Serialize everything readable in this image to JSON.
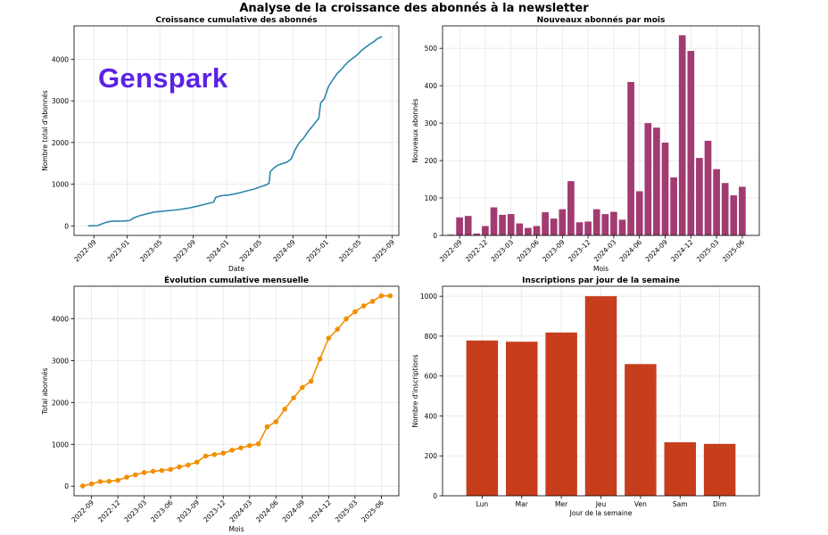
{
  "figure": {
    "title": "Analyse de la croissance des abonnés à la newsletter",
    "watermark": "Genspark"
  },
  "chart_data": [
    {
      "type": "line",
      "title": "Croissance cumulative des abonnés",
      "xlabel": "Date",
      "ylabel": "Nombre total d'abonnés",
      "color": "#2e86ab",
      "xlim": [
        "2022-06-20",
        "2025-09-25"
      ],
      "ylim": [
        -230,
        4800
      ],
      "yticks": [
        0,
        1000,
        2000,
        3000,
        4000
      ],
      "xticks": [
        "2022-09",
        "2023-01",
        "2023-05",
        "2023-09",
        "2024-01",
        "2024-05",
        "2024-09",
        "2025-01",
        "2025-05",
        "2025-09"
      ],
      "grid": true,
      "series": [
        {
          "x": [
            "2022-08-10",
            "2022-09-15",
            "2022-10-05",
            "2022-10-25",
            "2022-11-10",
            "2022-12-15",
            "2023-01-10",
            "2023-01-25",
            "2023-02-15",
            "2023-03-10",
            "2023-04-10",
            "2023-05-10",
            "2023-06-10",
            "2023-07-10",
            "2023-08-10",
            "2023-08-25",
            "2023-09-15",
            "2023-10-10",
            "2023-11-15",
            "2023-11-22",
            "2023-12-10",
            "2024-01-10",
            "2024-02-10",
            "2024-03-10",
            "2024-04-10",
            "2024-05-10",
            "2024-05-25",
            "2024-06-05",
            "2024-06-10",
            "2024-06-25",
            "2024-07-10",
            "2024-08-10",
            "2024-08-25",
            "2024-09-10",
            "2024-09-25",
            "2024-10-10",
            "2024-10-25",
            "2024-11-10",
            "2024-11-25",
            "2024-12-05",
            "2024-12-12",
            "2024-12-25",
            "2025-01-10",
            "2025-01-25",
            "2025-02-10",
            "2025-02-25",
            "2025-03-10",
            "2025-03-25",
            "2025-04-10",
            "2025-04-25",
            "2025-05-10",
            "2025-05-25",
            "2025-06-10",
            "2025-06-25",
            "2025-07-10",
            "2025-07-25"
          ],
          "y": [
            0,
            5,
            60,
            100,
            110,
            115,
            125,
            190,
            240,
            280,
            330,
            350,
            370,
            390,
            420,
            440,
            470,
            510,
            570,
            680,
            720,
            740,
            780,
            830,
            880,
            950,
            980,
            1020,
            1300,
            1400,
            1460,
            1530,
            1600,
            1840,
            2000,
            2100,
            2250,
            2380,
            2500,
            2580,
            2950,
            3050,
            3350,
            3500,
            3650,
            3750,
            3850,
            3950,
            4030,
            4100,
            4200,
            4280,
            4360,
            4420,
            4500,
            4540
          ]
        }
      ]
    },
    {
      "type": "bar",
      "title": "Nouveaux abonnés par mois",
      "xlabel": "Mois",
      "ylabel": "Nouveaux abonnés",
      "color": "#a23b72",
      "ylim": [
        0,
        560
      ],
      "yticks": [
        0,
        100,
        200,
        300,
        400,
        500
      ],
      "tick_labels": [
        "2022-09",
        "2022-12",
        "2023-03",
        "2023-06",
        "2023-09",
        "2023-12",
        "2024-03",
        "2024-06",
        "2024-09",
        "2024-12",
        "2025-03",
        "2025-06"
      ],
      "grid": true,
      "categories": [
        "2022-08",
        "2022-09",
        "2022-10",
        "2022-11",
        "2022-12",
        "2023-01",
        "2023-02",
        "2023-03",
        "2023-04",
        "2023-05",
        "2023-06",
        "2023-07",
        "2023-08",
        "2023-09",
        "2023-10",
        "2023-11",
        "2023-12",
        "2024-01",
        "2024-02",
        "2024-03",
        "2024-04",
        "2024-05",
        "2024-06",
        "2024-07",
        "2024-08",
        "2024-09",
        "2024-10",
        "2024-11",
        "2024-12",
        "2025-01",
        "2025-02",
        "2025-03",
        "2025-04",
        "2025-05",
        "2025-06",
        "2025-07"
      ],
      "values": [
        2,
        48,
        52,
        5,
        25,
        75,
        55,
        57,
        32,
        20,
        25,
        62,
        45,
        70,
        145,
        35,
        37,
        70,
        57,
        63,
        42,
        410,
        118,
        300,
        288,
        248,
        155,
        535,
        493,
        207,
        253,
        177,
        140,
        107,
        130,
        0
      ]
    },
    {
      "type": "line",
      "title": "Évolution cumulative mensuelle",
      "xlabel": "Mois",
      "ylabel": "Total abonnés",
      "color": "#f18f01",
      "markers": true,
      "ylim": [
        -230,
        4780
      ],
      "yticks": [
        0,
        1000,
        2000,
        3000,
        4000
      ],
      "tick_labels": [
        "2022-09",
        "2022-12",
        "2023-03",
        "2023-06",
        "2023-09",
        "2023-12",
        "2024-03",
        "2024-06",
        "2024-09",
        "2024-12",
        "2025-03",
        "2025-06"
      ],
      "grid": true,
      "categories": [
        "2022-08",
        "2022-09",
        "2022-10",
        "2022-11",
        "2022-12",
        "2023-01",
        "2023-02",
        "2023-03",
        "2023-04",
        "2023-05",
        "2023-06",
        "2023-07",
        "2023-08",
        "2023-09",
        "2023-10",
        "2023-11",
        "2023-12",
        "2024-01",
        "2024-02",
        "2024-03",
        "2024-04",
        "2024-05",
        "2024-06",
        "2024-07",
        "2024-08",
        "2024-09",
        "2024-10",
        "2024-11",
        "2024-12",
        "2025-01",
        "2025-02",
        "2025-03",
        "2025-04",
        "2025-05",
        "2025-06",
        "2025-07"
      ],
      "values": [
        5,
        55,
        110,
        115,
        140,
        215,
        270,
        325,
        355,
        375,
        400,
        460,
        505,
        575,
        720,
        755,
        790,
        860,
        915,
        970,
        1010,
        1420,
        1540,
        1840,
        2110,
        2360,
        2510,
        3040,
        3540,
        3750,
        4000,
        4170,
        4310,
        4420,
        4550,
        4550
      ]
    },
    {
      "type": "bar",
      "title": "Inscriptions par jour de la semaine",
      "xlabel": "Jour de la semaine",
      "ylabel": "Nombre d'inscriptions",
      "color": "#c73e1d",
      "ylim": [
        0,
        1050
      ],
      "yticks": [
        0,
        200,
        400,
        600,
        800,
        1000
      ],
      "grid": true,
      "categories": [
        "Lun",
        "Mar",
        "Mer",
        "Jeu",
        "Ven",
        "Sam",
        "Dim"
      ],
      "values": [
        778,
        772,
        818,
        1000,
        660,
        268,
        260
      ]
    }
  ]
}
